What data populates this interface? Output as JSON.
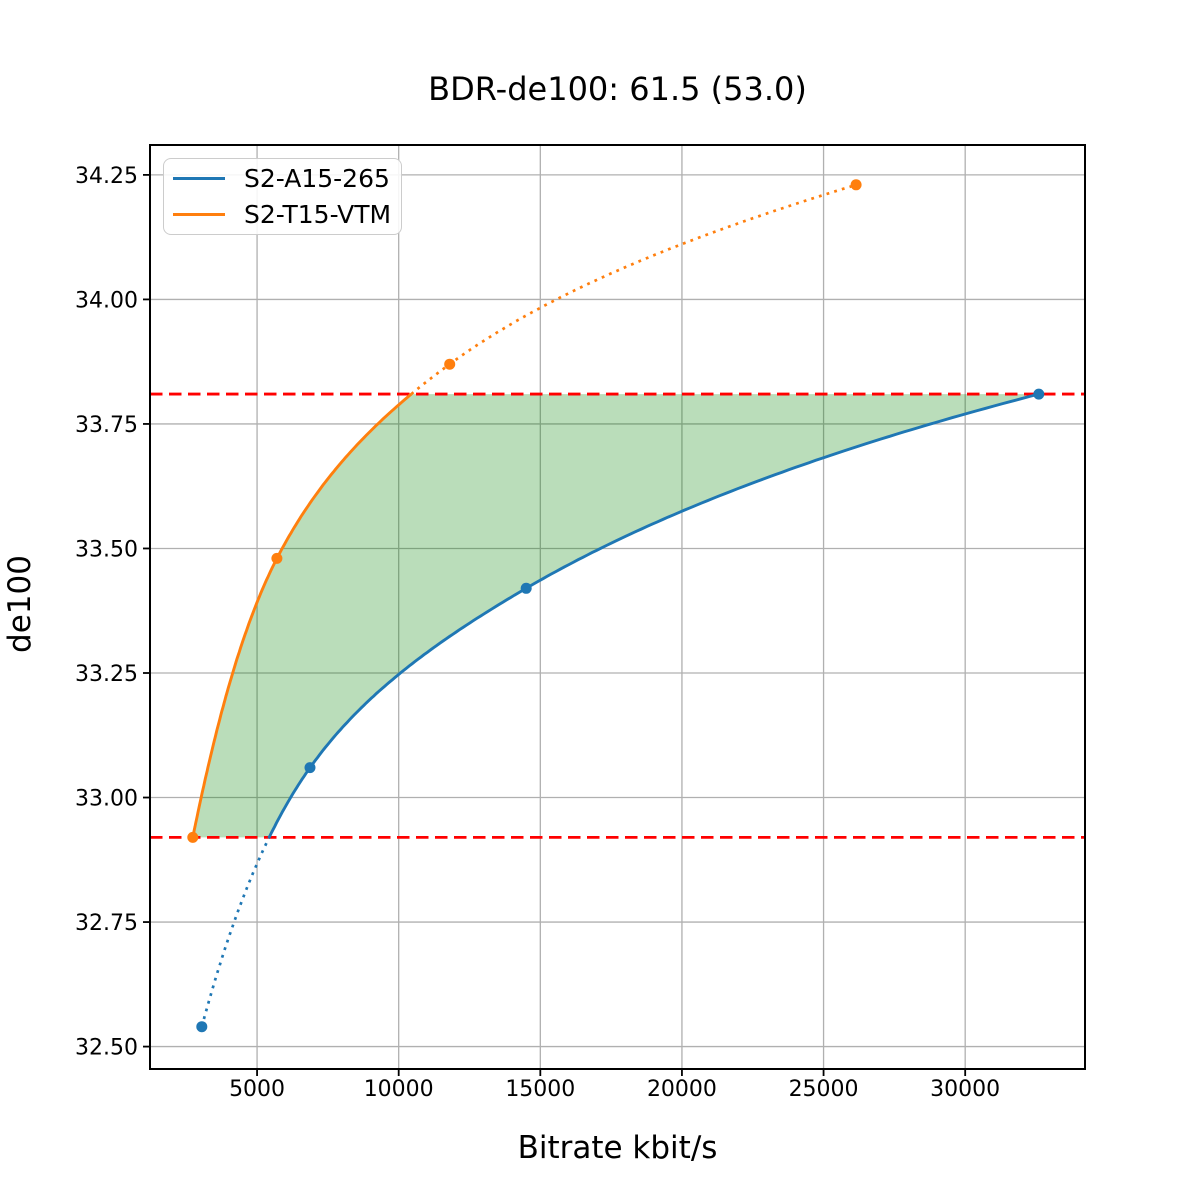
{
  "chart_data": {
    "type": "line",
    "title": "BDR-de100: 61.5 (53.0)",
    "xlabel": "Bitrate kbit/s",
    "ylabel": "de100",
    "xlim": [
      1220,
      34230
    ],
    "ylim": [
      32.455,
      34.31
    ],
    "xtick_values": [
      5000,
      10000,
      15000,
      20000,
      25000,
      30000
    ],
    "xtick_labels": [
      "5000",
      "10000",
      "15000",
      "20000",
      "25000",
      "30000"
    ],
    "ytick_values": [
      32.5,
      32.75,
      33.0,
      33.25,
      33.5,
      33.75,
      34.0,
      34.25
    ],
    "ytick_labels": [
      "32.50",
      "32.75",
      "33.00",
      "33.25",
      "33.50",
      "33.75",
      "34.00",
      "34.25"
    ],
    "grid": true,
    "grid_color": "#b0b0b0",
    "axis_color": "#000000",
    "legend_position": "upper-left",
    "series": [
      {
        "name": "S2-A15-265",
        "color": "#1f77b4",
        "points": [
          [
            3050,
            32.54
          ],
          [
            6870,
            33.06
          ],
          [
            14500,
            33.42
          ],
          [
            32600,
            33.81
          ]
        ]
      },
      {
        "name": "S2-T15-VTM",
        "color": "#ff7f0e",
        "points": [
          [
            2730,
            32.92
          ],
          [
            5700,
            33.48
          ],
          [
            11800,
            33.87
          ],
          [
            26150,
            34.23
          ]
        ]
      }
    ],
    "overlap_interval": {
      "lower": 32.92,
      "upper": 33.81,
      "line_color": "#ff0000",
      "line_style": "dashed"
    },
    "shaded_region": {
      "color": "#008000",
      "opacity": 0.27
    }
  }
}
